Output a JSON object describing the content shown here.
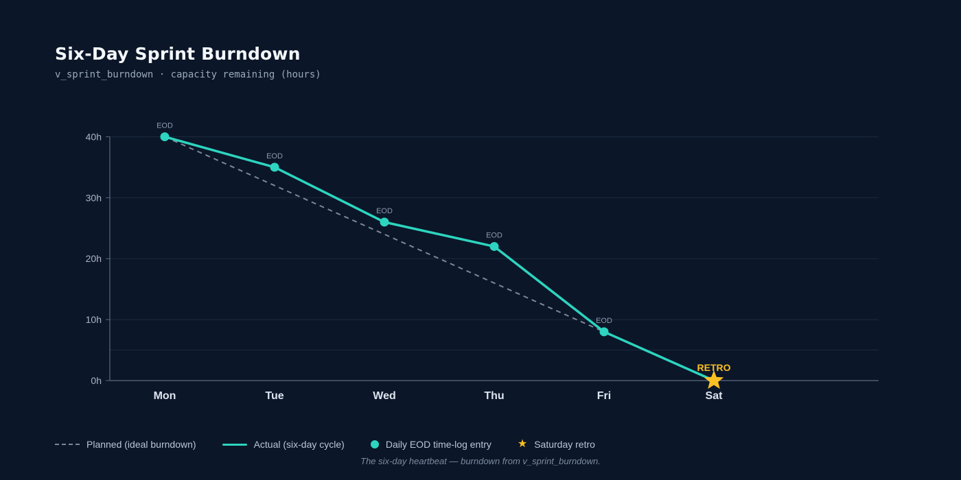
{
  "header": {
    "title": "Six-Day Sprint Burndown",
    "subtitle": "v_sprint_burndown · capacity remaining (hours)"
  },
  "chart_data": {
    "type": "line",
    "title": "Six-Day Sprint Burndown",
    "subtitle": "v_sprint_burndown · capacity remaining (hours)",
    "categories": [
      "Mon",
      "Tue",
      "Wed",
      "Thu",
      "Fri",
      "Sat"
    ],
    "yticks": [
      0,
      10,
      20,
      30,
      40
    ],
    "ytick_labels": [
      "0h",
      "10h",
      "20h",
      "30h",
      "40h"
    ],
    "ylim": [
      0,
      45
    ],
    "grid": true,
    "series": [
      {
        "name": "Planned (ideal burndown)",
        "style": "dashed",
        "color": "#7c8799",
        "values": [
          40,
          32,
          24,
          16,
          8,
          0
        ]
      },
      {
        "name": "Actual (six-day cycle)",
        "style": "solid",
        "color": "#2dd4bf",
        "values": [
          40,
          35,
          26,
          22,
          8,
          0
        ]
      }
    ],
    "point_label": "EOD",
    "retro_label": "RETRO",
    "retro_color": "#fbbf24"
  },
  "legend": {
    "planned": "Planned (ideal burndown)",
    "actual": "Actual (six-day cycle)",
    "eod": "Daily EOD time-log entry",
    "retro": "Saturday retro"
  },
  "footnote": "The six-day heartbeat — burndown from v_sprint_burndown."
}
